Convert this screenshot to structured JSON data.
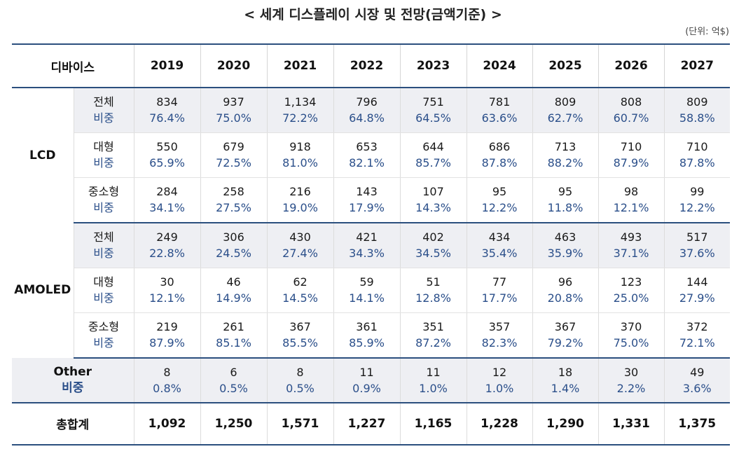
{
  "title": "< 세계 디스플레이 시장 및 전망(금액기준) >",
  "unit": "(단위: 억$)",
  "header": {
    "device_label": "디바이스",
    "years": [
      "2019",
      "2020",
      "2021",
      "2022",
      "2023",
      "2024",
      "2025",
      "2026",
      "2027"
    ]
  },
  "groups": [
    {
      "name": "LCD",
      "rows": [
        {
          "name": "전체",
          "ratio_label": "비중",
          "values": [
            "834",
            "937",
            "1,134",
            "796",
            "751",
            "781",
            "809",
            "808",
            "809"
          ],
          "shares": [
            "76.4%",
            "75.0%",
            "72.2%",
            "64.8%",
            "64.5%",
            "63.6%",
            "62.7%",
            "60.7%",
            "58.8%"
          ]
        },
        {
          "name": "대형",
          "ratio_label": "비중",
          "values": [
            "550",
            "679",
            "918",
            "653",
            "644",
            "686",
            "713",
            "710",
            "710"
          ],
          "shares": [
            "65.9%",
            "72.5%",
            "81.0%",
            "82.1%",
            "85.7%",
            "87.8%",
            "88.2%",
            "87.9%",
            "87.8%"
          ]
        },
        {
          "name": "중소형",
          "ratio_label": "비중",
          "values": [
            "284",
            "258",
            "216",
            "143",
            "107",
            "95",
            "95",
            "98",
            "99"
          ],
          "shares": [
            "34.1%",
            "27.5%",
            "19.0%",
            "17.9%",
            "14.3%",
            "12.2%",
            "11.8%",
            "12.1%",
            "12.2%"
          ]
        }
      ]
    },
    {
      "name": "AMOLED",
      "rows": [
        {
          "name": "전체",
          "ratio_label": "비중",
          "values": [
            "249",
            "306",
            "430",
            "421",
            "402",
            "434",
            "463",
            "493",
            "517"
          ],
          "shares": [
            "22.8%",
            "24.5%",
            "27.4%",
            "34.3%",
            "34.5%",
            "35.4%",
            "35.9%",
            "37.1%",
            "37.6%"
          ]
        },
        {
          "name": "대형",
          "ratio_label": "비중",
          "values": [
            "30",
            "46",
            "62",
            "59",
            "51",
            "77",
            "96",
            "123",
            "144"
          ],
          "shares": [
            "12.1%",
            "14.9%",
            "14.5%",
            "14.1%",
            "12.8%",
            "17.7%",
            "20.8%",
            "25.0%",
            "27.9%"
          ]
        },
        {
          "name": "중소형",
          "ratio_label": "비중",
          "values": [
            "219",
            "261",
            "367",
            "361",
            "351",
            "357",
            "367",
            "370",
            "372"
          ],
          "shares": [
            "87.9%",
            "85.1%",
            "85.5%",
            "85.9%",
            "87.2%",
            "82.3%",
            "79.2%",
            "75.0%",
            "72.1%"
          ]
        }
      ]
    }
  ],
  "other": {
    "name": "Other",
    "ratio_label": "비중",
    "values": [
      "8",
      "6",
      "8",
      "11",
      "11",
      "12",
      "18",
      "30",
      "49"
    ],
    "shares": [
      "0.8%",
      "0.5%",
      "0.5%",
      "0.9%",
      "1.0%",
      "1.0%",
      "1.4%",
      "2.2%",
      "3.6%"
    ]
  },
  "total": {
    "label": "총합계",
    "values": [
      "1,092",
      "1,250",
      "1,571",
      "1,227",
      "1,165",
      "1,228",
      "1,290",
      "1,331",
      "1,375"
    ]
  }
}
